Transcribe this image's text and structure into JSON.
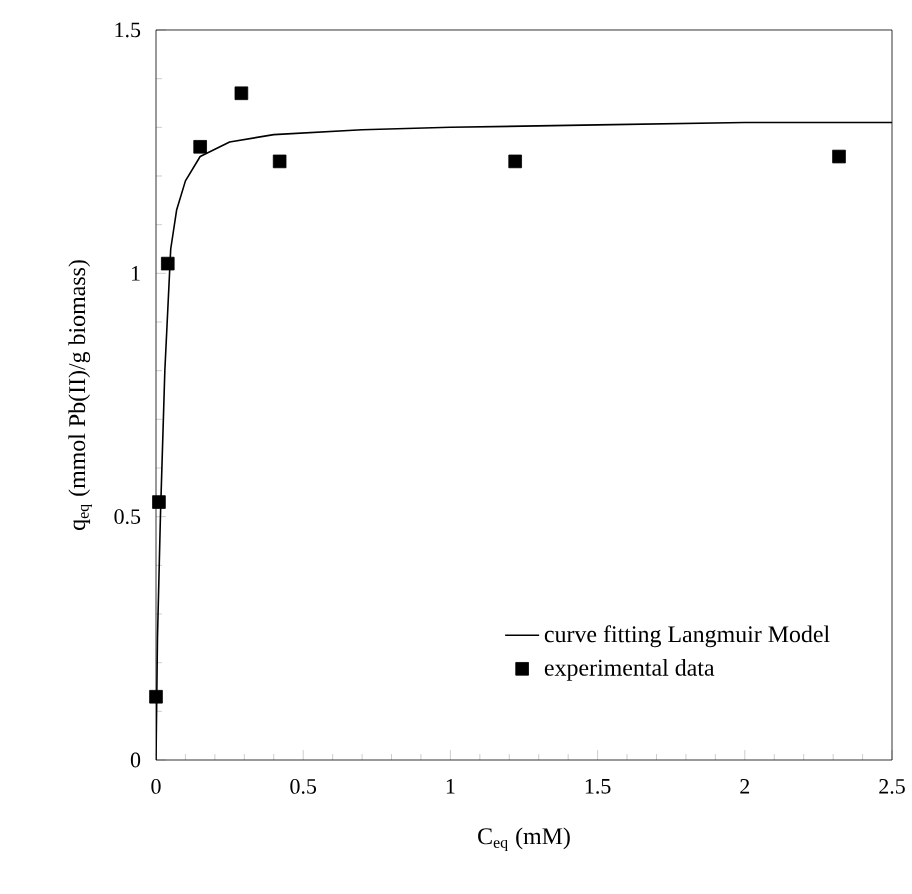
{
  "chart_data": {
    "type": "scatter",
    "xlabel": "C$_{eq}$ (mM)",
    "ylabel": "q$_{eq}$ (mmol Pb(II)/g biomass)",
    "xlim": [
      0,
      2.5
    ],
    "ylim": [
      0,
      1.5
    ],
    "xticks": [
      0,
      0.5,
      1,
      1.5,
      2,
      2.5
    ],
    "yticks": [
      0,
      0.5,
      1,
      1.5
    ],
    "legend": "bottom right",
    "grid": false,
    "series": [
      {
        "name": "curve fitting Langmuir Model",
        "type": "line",
        "color": "#000000",
        "marker": "none",
        "line_style": "solid",
        "x": [
          0,
          0.005,
          0.015,
          0.03,
          0.05,
          0.07,
          0.1,
          0.15,
          0.25,
          0.4,
          0.7,
          1,
          1.5,
          2,
          2.5
        ],
        "values": [
          0,
          0.25,
          0.5,
          0.8,
          1.05,
          1.13,
          1.19,
          1.24,
          1.27,
          1.285,
          1.295,
          1.3,
          1.305,
          1.31,
          1.31
        ]
      },
      {
        "name": "experimental data",
        "color": "#000000",
        "marker": "square",
        "x": [
          0,
          0.01,
          0.04,
          0.15,
          0.29,
          0.42,
          1.22,
          2.32
        ],
        "values": [
          0.13,
          0.53,
          1.02,
          1.26,
          1.37,
          1.23,
          1.23,
          1.24
        ]
      }
    ]
  }
}
